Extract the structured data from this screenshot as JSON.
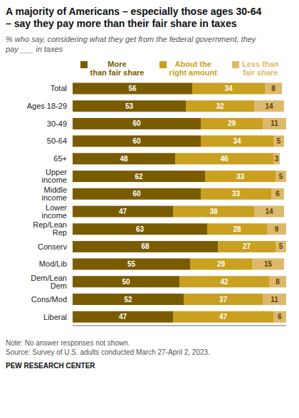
{
  "chart_data": {
    "type": "bar",
    "orientation": "horizontal",
    "stacked": true,
    "data_labels": true,
    "grid": false,
    "legend": "top",
    "tick_labels": "y",
    "title": "A majority of Americans – especially those ages 30-64\n– say they pay more than their fair share in taxes",
    "subtitle": "% who say, considering what they get from the federal government, they\npay ___ in taxes",
    "annotations": [
      "Note: No answer responses not shown.\nSource: Survey of U.S. adults conducted March 27-April 2, 2023.",
      "PEW RESEARCH CENTER"
    ],
    "categories": [
      "Total",
      "Ages 18-29",
      "30-49",
      "50-64",
      "65+",
      "Upper income",
      "Middle income",
      "Lower income",
      "Rep/Lean Rep",
      "Conserv",
      "Mod/Lib",
      "Dem/Lean Dem",
      "Cons/Mod",
      "Liberal"
    ],
    "series": [
      {
        "name": "More\nthan fair share",
        "color": "#7A5C00",
        "values": [
          56,
          53,
          60,
          60,
          48,
          62,
          60,
          47,
          63,
          68,
          55,
          50,
          52,
          47
        ]
      },
      {
        "name": "About the\nright amount",
        "color": "#C9A020",
        "values": [
          34,
          32,
          29,
          34,
          46,
          33,
          33,
          38,
          28,
          27,
          29,
          42,
          37,
          47
        ]
      },
      {
        "name": "Less than\nfair share",
        "color": "#DDB96B",
        "values": [
          8,
          14,
          11,
          5,
          3,
          5,
          6,
          14,
          9,
          5,
          15,
          8,
          11,
          6
        ]
      }
    ],
    "xlim": [
      0,
      100
    ]
  }
}
